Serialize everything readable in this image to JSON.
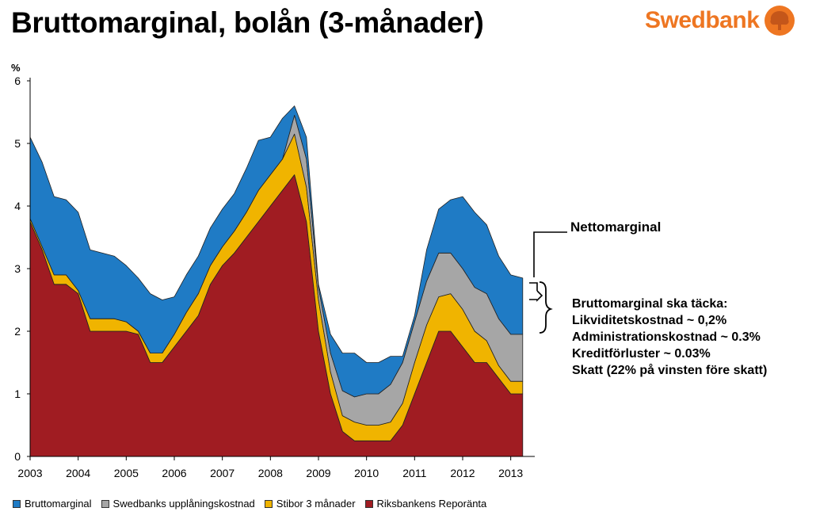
{
  "page": {
    "title": "Bruttomarginal, bolån (3-månader)",
    "logo_text": "Swedbank"
  },
  "annotations": {
    "net": "Nettomarginal",
    "gross_lines": [
      "Bruttomarginal ska täcka:",
      "Likviditetskostnad ~ 0,2%",
      "Administrationskostnad ~ 0.3%",
      "Kreditförluster ~ 0.03%",
      "Skatt (22% på vinsten före skatt)"
    ]
  },
  "colors": {
    "brutto": "#1f7bc5",
    "upplaning": "#a6a6a6",
    "stibor": "#f0b400",
    "repo": "#a01c22",
    "brand": "#ee7622"
  },
  "chart_data": {
    "type": "area",
    "stacked": true,
    "title": "Bruttomarginal, bolån (3-månader)",
    "ylabel": "%",
    "ylim": [
      0,
      6
    ],
    "yticks": [
      0,
      1,
      2,
      3,
      4,
      5,
      6
    ],
    "xlim": [
      2003.0,
      2013.5
    ],
    "xticks": [
      2003,
      2004,
      2005,
      2006,
      2007,
      2008,
      2009,
      2010,
      2011,
      2012,
      2013
    ],
    "x": [
      2003.0,
      2003.25,
      2003.5,
      2003.75,
      2004.0,
      2004.25,
      2004.5,
      2004.75,
      2005.0,
      2005.25,
      2005.5,
      2005.75,
      2006.0,
      2006.25,
      2006.5,
      2006.75,
      2007.0,
      2007.25,
      2007.5,
      2007.75,
      2008.0,
      2008.25,
      2008.5,
      2008.75,
      2009.0,
      2009.25,
      2009.5,
      2009.75,
      2010.0,
      2010.25,
      2010.5,
      2010.75,
      2011.0,
      2011.25,
      2011.5,
      2011.75,
      2012.0,
      2012.25,
      2012.5,
      2012.75,
      2013.0,
      2013.25
    ],
    "series": [
      {
        "name": "Riksbankens Reporänta",
        "color": "#a01c22",
        "values": [
          3.75,
          3.3,
          2.75,
          2.75,
          2.6,
          2.0,
          2.0,
          2.0,
          2.0,
          1.95,
          1.5,
          1.5,
          1.75,
          2.0,
          2.25,
          2.75,
          3.05,
          3.25,
          3.5,
          3.75,
          4.0,
          4.25,
          4.5,
          3.75,
          2.0,
          1.0,
          0.4,
          0.25,
          0.25,
          0.25,
          0.25,
          0.5,
          1.0,
          1.5,
          2.0,
          2.0,
          1.75,
          1.5,
          1.5,
          1.25,
          1.0,
          1.0
        ]
      },
      {
        "name": "Stibor 3 månader",
        "color": "#f0b400",
        "values": [
          0.05,
          0.05,
          0.15,
          0.15,
          0.05,
          0.2,
          0.2,
          0.2,
          0.15,
          0.05,
          0.15,
          0.15,
          0.2,
          0.3,
          0.35,
          0.3,
          0.3,
          0.35,
          0.4,
          0.5,
          0.5,
          0.5,
          0.65,
          0.55,
          0.5,
          0.35,
          0.25,
          0.3,
          0.25,
          0.25,
          0.3,
          0.35,
          0.5,
          0.6,
          0.55,
          0.6,
          0.6,
          0.5,
          0.35,
          0.2,
          0.2,
          0.2
        ]
      },
      {
        "name": "Swedbanks upplåningskostnad",
        "color": "#a6a6a6",
        "values": [
          0.0,
          0.0,
          0.0,
          0.0,
          0.0,
          0.0,
          0.0,
          0.0,
          0.0,
          0.0,
          0.0,
          0.0,
          0.0,
          0.0,
          0.0,
          0.0,
          0.0,
          0.0,
          0.0,
          0.0,
          0.0,
          0.0,
          0.3,
          0.45,
          0.2,
          0.3,
          0.4,
          0.4,
          0.5,
          0.5,
          0.6,
          0.65,
          0.65,
          0.7,
          0.7,
          0.65,
          0.65,
          0.7,
          0.75,
          0.75,
          0.75,
          0.75
        ]
      },
      {
        "name": "Bruttomarginal",
        "color": "#1f7bc5",
        "values": [
          1.3,
          1.35,
          1.25,
          1.2,
          1.25,
          1.1,
          1.05,
          1.0,
          0.9,
          0.85,
          0.95,
          0.85,
          0.6,
          0.6,
          0.6,
          0.6,
          0.6,
          0.6,
          0.7,
          0.8,
          0.6,
          0.65,
          0.15,
          0.35,
          0.05,
          0.3,
          0.6,
          0.7,
          0.5,
          0.5,
          0.45,
          0.1,
          0.1,
          0.5,
          0.7,
          0.85,
          1.15,
          1.2,
          1.1,
          1.0,
          0.95,
          0.9
        ]
      }
    ],
    "legend": [
      "Bruttomarginal",
      "Swedbanks upplåningskostnad",
      "Stibor 3 månader",
      "Riksbankens Reporänta"
    ],
    "legend_position": "bottom-left"
  }
}
